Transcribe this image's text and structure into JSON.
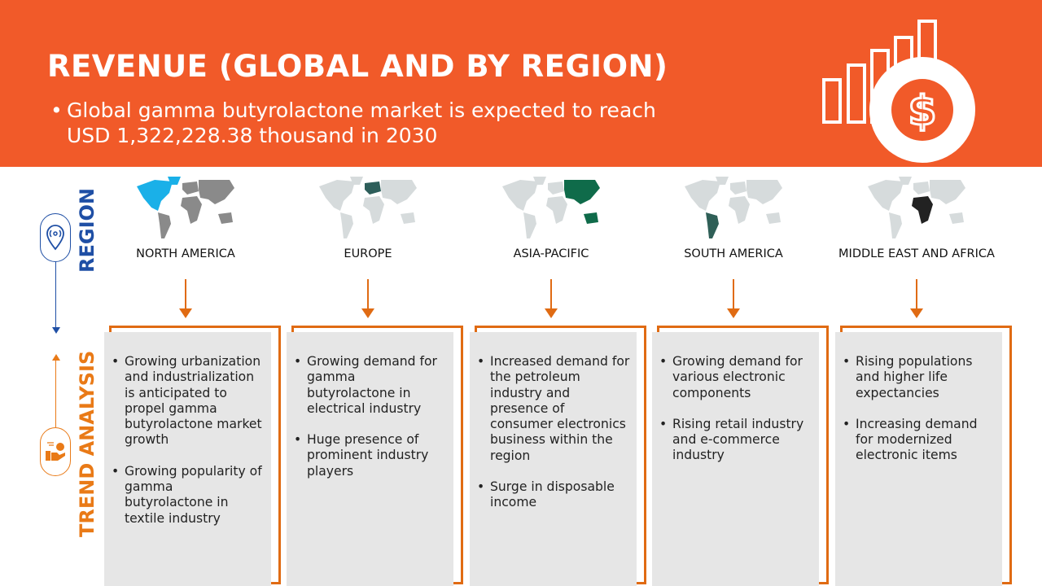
{
  "header": {
    "title": "REVENUE (GLOBAL AND BY REGION)",
    "bullet": "Global gamma butyrolactone market is expected to reach USD 1,322,228.38 thousand in 2030",
    "icon": "revenue-growth-dollar-icon",
    "bg_color": "#F15A29"
  },
  "side": {
    "region_label": "REGION",
    "trend_label": "TREND ANALYSIS",
    "region_icon": "location-pin-icon",
    "trend_icon": "hand-coin-icon",
    "region_color": "#1F4FA5",
    "trend_color": "#E97A17"
  },
  "regions": [
    {
      "name": "NORTH AMERICA",
      "highlight": "#1AB0E8",
      "trends": [
        "Growing urbanization and industrialization is anticipated to propel gamma butyrolactone market growth",
        "Growing popularity of gamma butyrolactone in textile industry"
      ]
    },
    {
      "name": "EUROPE",
      "highlight": "#2D5E5A",
      "trends": [
        "Growing demand for gamma butyrolactone in electrical industry",
        "Huge presence of prominent industry players"
      ]
    },
    {
      "name": "ASIA-PACIFIC",
      "highlight": "#0F6B4A",
      "trends": [
        "Increased demand for the petroleum industry and presence of consumer electronics business within the region",
        "Surge in disposable income"
      ]
    },
    {
      "name": "SOUTH AMERICA",
      "highlight": "#2F5F57",
      "trends": [
        "Growing demand for various electronic components",
        "Rising retail industry and e-commerce industry"
      ]
    },
    {
      "name": "MIDDLE EAST AND AFRICA",
      "highlight": "#222222",
      "trends": [
        "Rising populations and higher life expectancies",
        "Increasing demand for modernized electronic items"
      ]
    }
  ]
}
